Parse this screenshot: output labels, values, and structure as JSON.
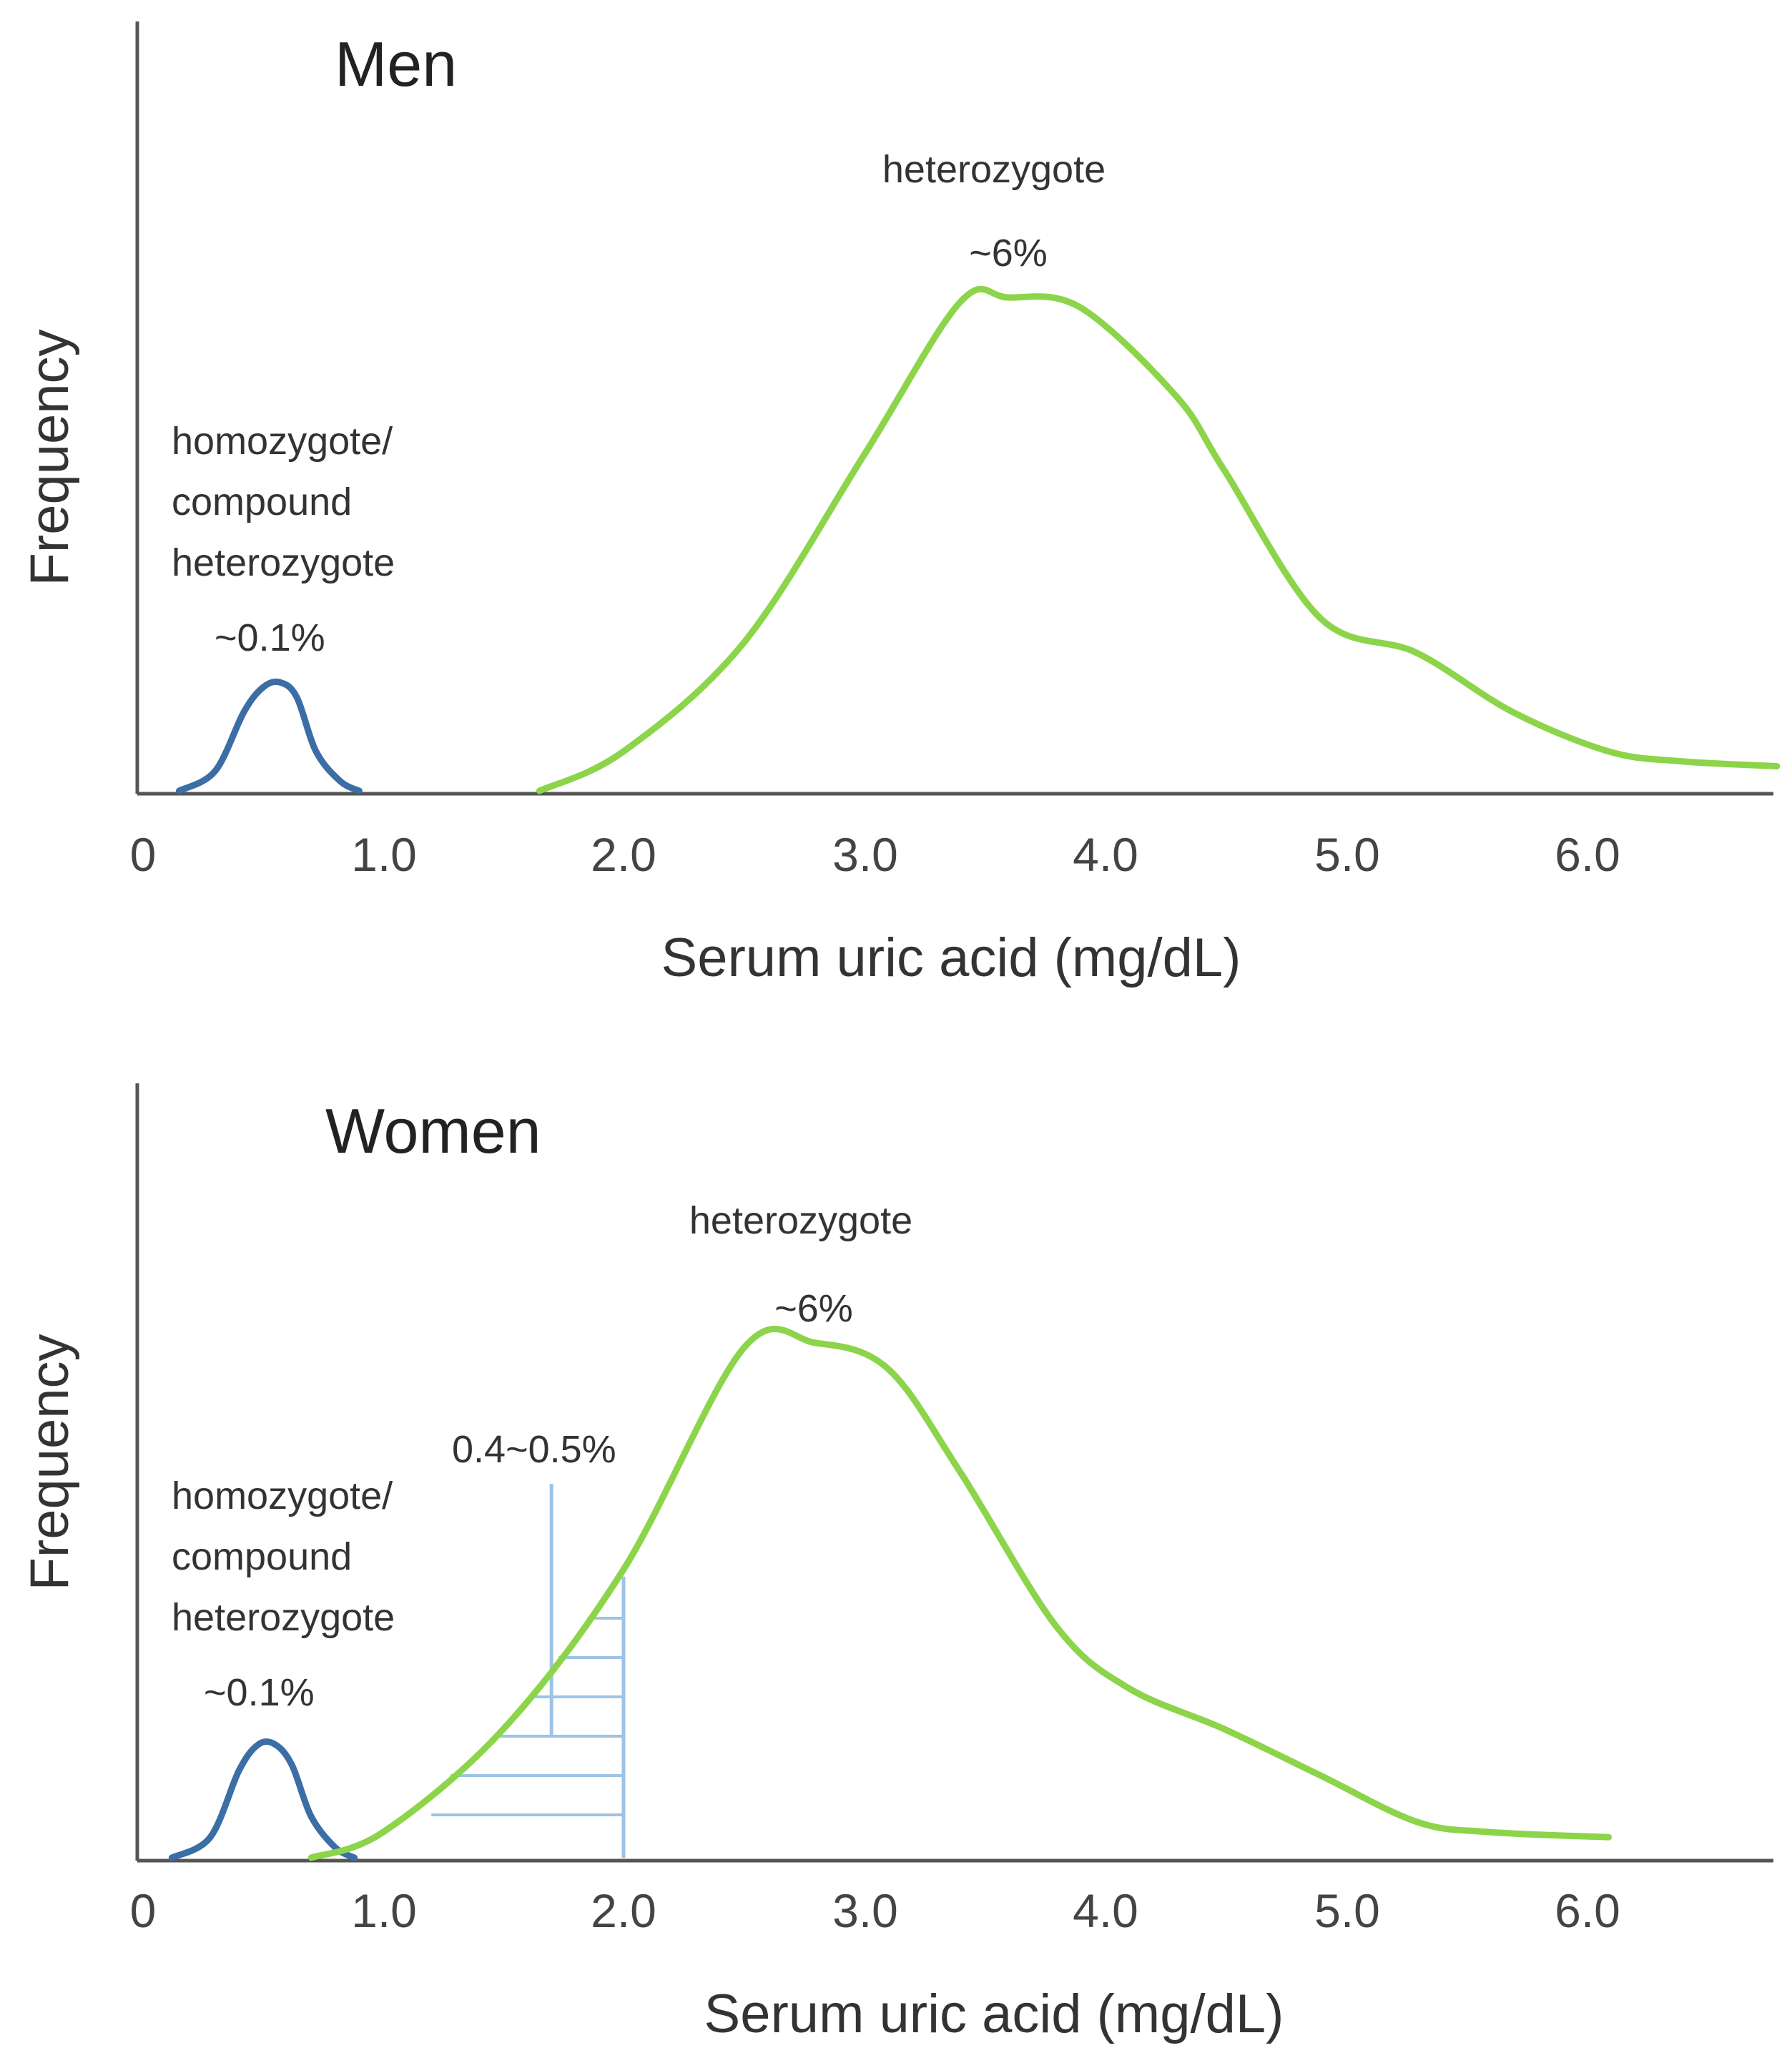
{
  "colors": {
    "heterozygote_curve": "#8CD44A",
    "homozygote_curve": "#3B6EA5",
    "hatch": "#9DC3E6",
    "axis": "#555555"
  },
  "chart_data": [
    {
      "type": "line",
      "title": "Men",
      "xlabel": "Serum uric acid (mg/dL)",
      "ylabel": "Frequency",
      "xlim": [
        0,
        6.8
      ],
      "ylim": [
        0,
        1.0
      ],
      "tick_labels": [
        "0",
        "1.0",
        "2.0",
        "3.0",
        "4.0",
        "5.0",
        "6.0"
      ],
      "tick_values": [
        0,
        1,
        2,
        3,
        4,
        5,
        6
      ],
      "series": [
        {
          "name": "homozygote/compound heterozygote",
          "x": [
            0.15,
            0.3,
            0.42,
            0.5,
            0.57,
            0.64,
            0.72,
            0.82,
            0.9
          ],
          "y": [
            0.0,
            0.04,
            0.16,
            0.21,
            0.22,
            0.19,
            0.08,
            0.02,
            0.0
          ]
        },
        {
          "name": "heterozygote",
          "x": [
            1.65,
            2.0,
            2.5,
            3.0,
            3.4,
            3.6,
            3.9,
            4.3,
            4.5,
            4.9,
            5.3,
            5.7,
            6.1,
            6.4,
            6.8
          ],
          "y": [
            0.0,
            0.08,
            0.3,
            0.68,
            0.99,
            1.0,
            0.98,
            0.8,
            0.65,
            0.35,
            0.28,
            0.16,
            0.08,
            0.06,
            0.05
          ]
        }
      ],
      "annotations": {
        "homozygote_label": [
          "homozygote/",
          "compound",
          "heterozygote"
        ],
        "homozygote_pct": "~0.1%",
        "heterozygote_label": "heterozygote",
        "heterozygote_pct": "~6%"
      }
    },
    {
      "type": "line",
      "title": "Women",
      "xlabel": "Serum uric acid (mg/dL)",
      "ylabel": "Frequency",
      "xlim": [
        0,
        6.8
      ],
      "ylim": [
        0,
        1.0
      ],
      "tick_labels": [
        "0",
        "1.0",
        "2.0",
        "3.0",
        "4.0",
        "5.0",
        "6.0"
      ],
      "tick_values": [
        0,
        1,
        2,
        3,
        4,
        5,
        6
      ],
      "series": [
        {
          "name": "homozygote/compound heterozygote",
          "x": [
            0.12,
            0.28,
            0.4,
            0.48,
            0.55,
            0.62,
            0.7,
            0.8,
            0.88
          ],
          "y": [
            0.0,
            0.04,
            0.17,
            0.22,
            0.22,
            0.18,
            0.08,
            0.02,
            0.0
          ]
        },
        {
          "name": "heterozygote",
          "x": [
            0.7,
            1.0,
            1.5,
            2.0,
            2.5,
            2.8,
            3.1,
            3.4,
            3.8,
            4.1,
            4.5,
            4.9,
            5.3,
            5.6,
            6.1
          ],
          "y": [
            0.0,
            0.05,
            0.25,
            0.56,
            0.99,
            1.0,
            0.95,
            0.75,
            0.45,
            0.33,
            0.25,
            0.16,
            0.07,
            0.05,
            0.04
          ]
        }
      ],
      "shaded_region": {
        "x_from": 1.2,
        "x_to": 2.0,
        "marker_x": 1.7,
        "label": "0.4~0.5%"
      },
      "annotations": {
        "homozygote_label": [
          "homozygote/",
          "compound",
          "heterozygote"
        ],
        "homozygote_pct": "~0.1%",
        "heterozygote_label": "heterozygote",
        "heterozygote_pct": "~6%"
      }
    }
  ]
}
